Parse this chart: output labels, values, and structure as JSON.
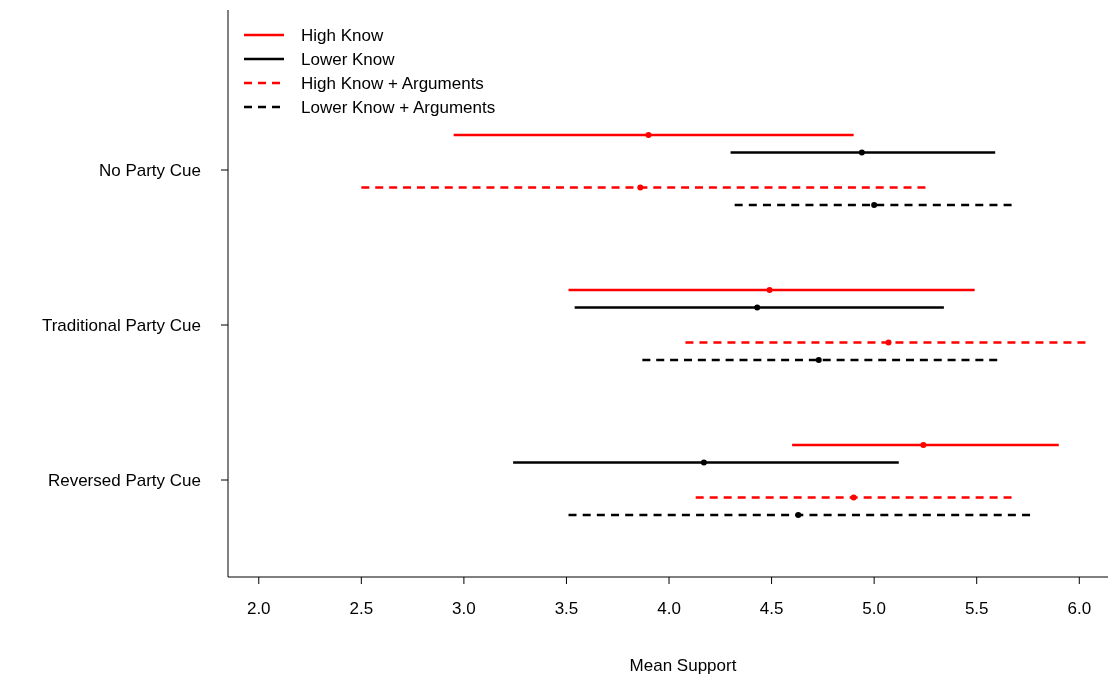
{
  "chart_data": {
    "type": "scatter",
    "orientation": "horizontal",
    "xlabel": "Mean Support",
    "categories": [
      "No Party Cue",
      "Traditional Party Cue",
      "Reversed Party Cue"
    ],
    "xlim": [
      1.85,
      6.14
    ],
    "xticks": [
      {
        "value": 2,
        "label": "2.0"
      },
      {
        "value": 2.5,
        "label": "2.5"
      },
      {
        "value": 3,
        "label": "3.0"
      },
      {
        "value": 3.5,
        "label": "3.5"
      },
      {
        "value": 4,
        "label": "4.0"
      },
      {
        "value": 4.5,
        "label": "4.5"
      },
      {
        "value": 5,
        "label": "5.0"
      },
      {
        "value": 5.5,
        "label": "5.5"
      },
      {
        "value": 6,
        "label": "6.0"
      }
    ],
    "marker": "circle",
    "legend": "top left",
    "series": [
      {
        "name": "High Know",
        "color": "#ff0000",
        "line_style": "solid",
        "values": [
          3.9,
          4.49,
          5.24
        ],
        "errors": [
          [
            2.95,
            4.9
          ],
          [
            3.51,
            5.49
          ],
          [
            4.6,
            5.9
          ]
        ]
      },
      {
        "name": "Lower Know",
        "color": "#000000",
        "line_style": "solid",
        "values": [
          4.94,
          4.43,
          4.17
        ],
        "errors": [
          [
            4.3,
            5.59
          ],
          [
            3.54,
            5.34
          ],
          [
            3.24,
            5.12
          ]
        ]
      },
      {
        "name": "High Know + Arguments",
        "color": "#ff0000",
        "line_style": "dashed",
        "values": [
          3.86,
          5.07,
          4.9
        ],
        "errors": [
          [
            2.5,
            5.25
          ],
          [
            4.08,
            6.03
          ],
          [
            4.13,
            5.67
          ]
        ]
      },
      {
        "name": "Lower Know + Arguments",
        "color": "#000000",
        "line_style": "dashed",
        "values": [
          5.0,
          4.73,
          4.63
        ],
        "errors": [
          [
            4.32,
            5.67
          ],
          [
            3.87,
            5.6
          ],
          [
            3.51,
            5.76
          ]
        ]
      }
    ]
  }
}
